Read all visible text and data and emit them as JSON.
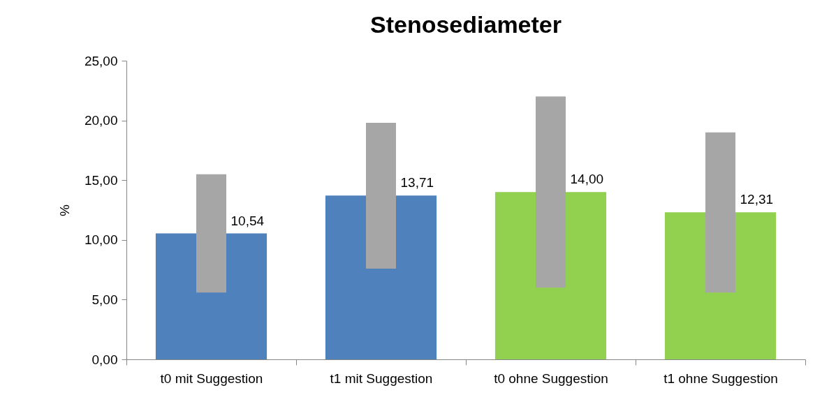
{
  "chart_data": {
    "type": "bar",
    "title": "Stenosediameter",
    "ylabel": "%",
    "categories": [
      "t0 mit Suggestion",
      "t1 mit Suggestion",
      "t0 ohne Suggestion",
      "t1 ohne Suggestion"
    ],
    "series": [
      {
        "colors": [
          "#4f81bd",
          "#4f81bd",
          "#92d050",
          "#92d050"
        ],
        "values": [
          10.54,
          13.71,
          14.0,
          12.31
        ],
        "value_labels": [
          "10,54",
          "13,71",
          "14,00",
          "12,31"
        ]
      },
      {
        "color": "#a6a6a6",
        "base": [
          5.6,
          7.6,
          6.0,
          5.6
        ],
        "values": [
          9.9,
          12.2,
          16.0,
          13.4
        ]
      }
    ],
    "ylim": [
      0,
      25
    ],
    "yticks": [
      {
        "value": 0,
        "label": "0,00"
      },
      {
        "value": 5,
        "label": "5,00"
      },
      {
        "value": 10,
        "label": "10,00"
      },
      {
        "value": 15,
        "label": "15,00"
      },
      {
        "value": 20,
        "label": "20,00"
      },
      {
        "value": 25,
        "label": "25,00"
      }
    ]
  }
}
